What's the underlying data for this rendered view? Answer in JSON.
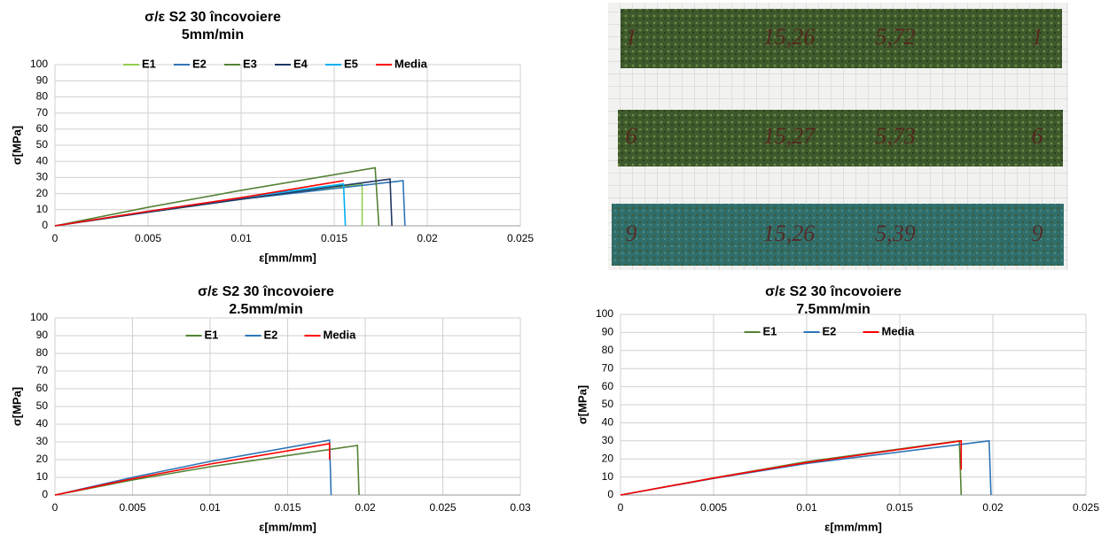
{
  "chart_data": [
    {
      "type": "line",
      "title": "σ/ε S2 30 încovoiere",
      "subtitle": "5mm/min",
      "x_label": "ε[mm/mm]",
      "y_label": "σ[MPa]",
      "xlim": [
        0,
        0.025
      ],
      "xticks": [
        0,
        0.005,
        0.01,
        0.015,
        0.02,
        0.025
      ],
      "ylim": [
        0,
        100
      ],
      "yticks": [
        0,
        10,
        20,
        30,
        40,
        50,
        60,
        70,
        80,
        90,
        100
      ],
      "grid": true,
      "series": [
        {
          "name": "E1",
          "color": "#92d050",
          "x": [
            0,
            0.005,
            0.01,
            0.0165,
            0.0165
          ],
          "values": [
            0,
            8.5,
            16.5,
            26,
            0
          ]
        },
        {
          "name": "E2",
          "color": "#2e75b6",
          "x": [
            0,
            0.005,
            0.01,
            0.0187,
            0.0188
          ],
          "values": [
            0,
            8.5,
            16.5,
            28,
            0
          ]
        },
        {
          "name": "E3",
          "color": "#548235",
          "x": [
            0,
            0.005,
            0.01,
            0.0172,
            0.0174
          ],
          "values": [
            0,
            11.5,
            22,
            36,
            0
          ]
        },
        {
          "name": "E4",
          "color": "#1f3864",
          "x": [
            0,
            0.005,
            0.01,
            0.018,
            0.0181
          ],
          "values": [
            0,
            8.5,
            16.5,
            29,
            0
          ]
        },
        {
          "name": "E5",
          "color": "#00b0f0",
          "x": [
            0,
            0.005,
            0.01,
            0.0155,
            0.0156
          ],
          "values": [
            0,
            9,
            17.5,
            26,
            0
          ]
        },
        {
          "name": "Media",
          "color": "#ff0000",
          "x": [
            0,
            0.005,
            0.01,
            0.0155
          ],
          "values": [
            0,
            9,
            17.5,
            28
          ]
        }
      ]
    },
    {
      "type": "line",
      "title": "σ/ε S2 30 încovoiere",
      "subtitle": "2.5mm/min",
      "x_label": "ε[mm/mm]",
      "y_label": "σ[MPa]",
      "xlim": [
        0,
        0.03
      ],
      "xticks": [
        0,
        0.005,
        0.01,
        0.015,
        0.02,
        0.025,
        0.03
      ],
      "ylim": [
        0,
        100
      ],
      "yticks": [
        0,
        10,
        20,
        30,
        40,
        50,
        60,
        70,
        80,
        90,
        100
      ],
      "grid": true,
      "series": [
        {
          "name": "E1",
          "color": "#548235",
          "x": [
            0,
            0.005,
            0.01,
            0.0195,
            0.0196
          ],
          "values": [
            0,
            8.5,
            16,
            28,
            0
          ]
        },
        {
          "name": "E2",
          "color": "#2e75b6",
          "x": [
            0,
            0.005,
            0.01,
            0.0177,
            0.0178
          ],
          "values": [
            0,
            10,
            19,
            31,
            0
          ]
        },
        {
          "name": "Media",
          "color": "#ff0000",
          "x": [
            0,
            0.005,
            0.01,
            0.0177,
            0.0177
          ],
          "values": [
            0,
            9.2,
            17.5,
            29,
            20
          ]
        }
      ]
    },
    {
      "type": "line",
      "title": "σ/ε S2 30 încovoiere",
      "subtitle": "7.5mm/min",
      "x_label": "ε[mm/mm]",
      "y_label": "σ[MPa]",
      "xlim": [
        0,
        0.025
      ],
      "xticks": [
        0,
        0.005,
        0.01,
        0.015,
        0.02,
        0.025
      ],
      "ylim": [
        0,
        100
      ],
      "yticks": [
        0,
        10,
        20,
        30,
        40,
        50,
        60,
        70,
        80,
        90,
        100
      ],
      "grid": true,
      "series": [
        {
          "name": "E1",
          "color": "#548235",
          "x": [
            0,
            0.005,
            0.01,
            0.0182,
            0.0183
          ],
          "values": [
            0,
            9.5,
            18.5,
            30,
            0
          ]
        },
        {
          "name": "E2",
          "color": "#2e75b6",
          "x": [
            0,
            0.005,
            0.01,
            0.0198,
            0.0199
          ],
          "values": [
            0,
            9.2,
            17.5,
            30,
            0
          ]
        },
        {
          "name": "Media",
          "color": "#ff0000",
          "x": [
            0,
            0.005,
            0.01,
            0.0183,
            0.0183
          ],
          "values": [
            0,
            9.4,
            18,
            30,
            14
          ]
        }
      ]
    }
  ],
  "photo": {
    "labels": [
      [
        "1",
        "15,26",
        "5,72",
        "1"
      ],
      [
        "6",
        "15,27",
        "5,73",
        "6"
      ],
      [
        "9",
        "15,26",
        "5,39",
        "9"
      ]
    ]
  }
}
